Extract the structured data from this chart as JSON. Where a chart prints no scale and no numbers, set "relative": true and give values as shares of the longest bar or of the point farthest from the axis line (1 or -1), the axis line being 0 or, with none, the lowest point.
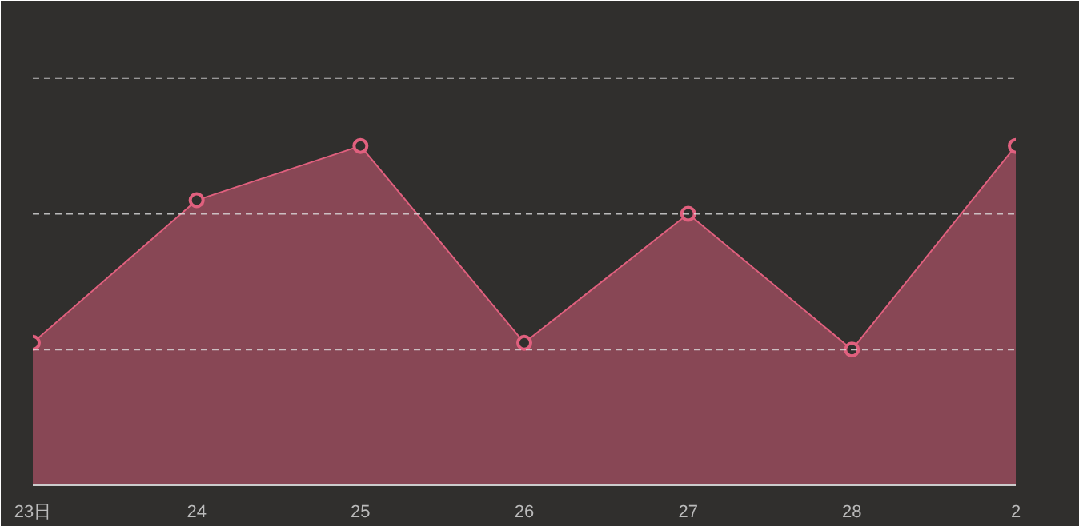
{
  "chart_data": {
    "type": "area",
    "relative": true,
    "categories": [
      "23日",
      "24",
      "25",
      "26",
      "27",
      "28",
      "2"
    ],
    "series": [
      {
        "color": "#e0607e",
        "values": [
          0.42,
          0.84,
          1,
          0.42,
          0.8,
          0.4,
          1
        ]
      }
    ],
    "ref_lines": [
      {
        "axis": "y",
        "value": 0.4,
        "color": "#dddddd",
        "line_style": "dashed"
      },
      {
        "axis": "y",
        "value": 0.8,
        "color": "#dddddd",
        "line_style": "dashed"
      },
      {
        "axis": "y",
        "value": 1.2,
        "color": "#dddddd",
        "line_style": "dashed"
      }
    ],
    "marker": "circle"
  }
}
